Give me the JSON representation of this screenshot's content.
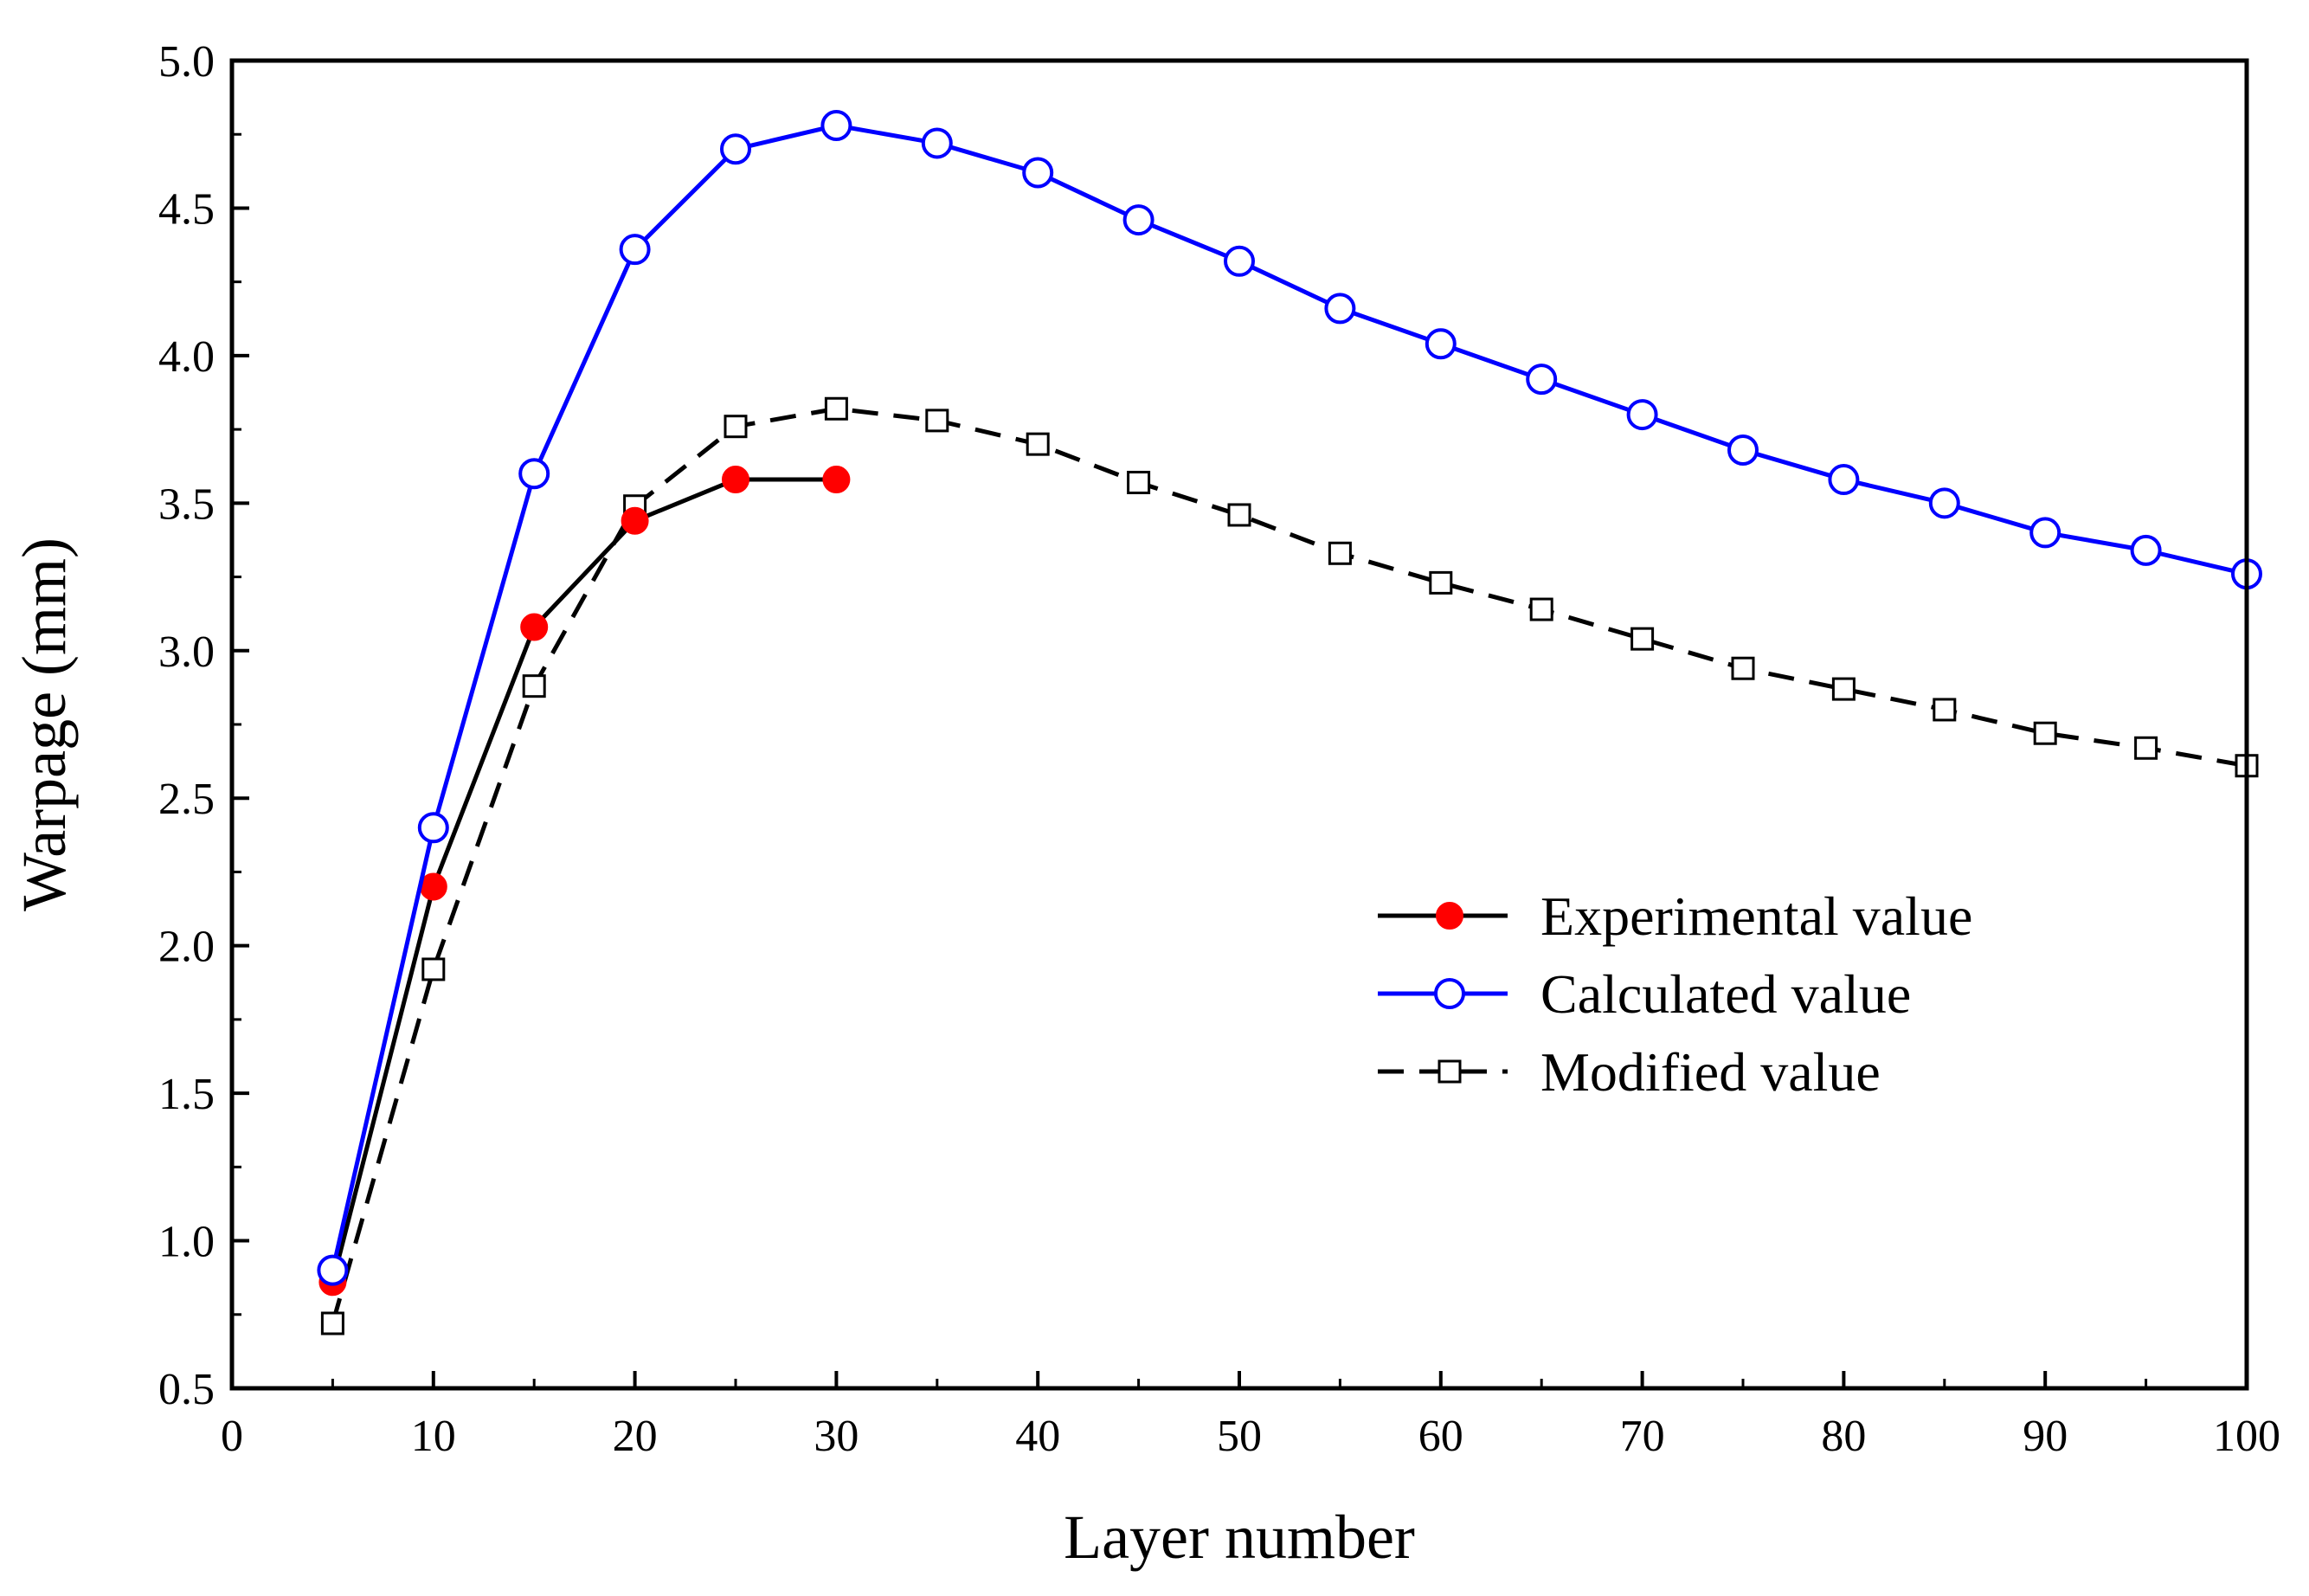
{
  "chart_data": {
    "type": "line",
    "title": "",
    "xlabel": "Layer number",
    "ylabel": "Warpage (mm)",
    "xlim": [
      0,
      100
    ],
    "ylim": [
      0.5,
      5.0
    ],
    "xticks": [
      0,
      10,
      20,
      30,
      40,
      50,
      60,
      70,
      80,
      90,
      100
    ],
    "xtick_labels": [
      "0",
      "10",
      "20",
      "30",
      "40",
      "50",
      "60",
      "70",
      "80",
      "90",
      "100"
    ],
    "yticks": [
      0.5,
      1.0,
      1.5,
      2.0,
      2.5,
      3.0,
      3.5,
      4.0,
      4.5,
      5.0
    ],
    "ytick_labels": [
      "0.5",
      "1.0",
      "1.5",
      "2.0",
      "2.5",
      "3.0",
      "3.5",
      "4.0",
      "4.5",
      "5.0"
    ],
    "grid": false,
    "legend_position": "center-right",
    "series": [
      {
        "name": "Experimental value",
        "color": "#000000",
        "marker_color": "#ff0000",
        "marker": "filled-circle",
        "line_style": "solid",
        "x": [
          5,
          10,
          15,
          20,
          25,
          30
        ],
        "y": [
          0.86,
          2.2,
          3.08,
          3.44,
          3.58,
          3.58
        ]
      },
      {
        "name": "Calculated value",
        "color": "#0000ff",
        "marker_color": "#0000ff",
        "marker": "open-circle",
        "line_style": "solid",
        "x": [
          5,
          10,
          15,
          20,
          25,
          30,
          35,
          40,
          45,
          50,
          55,
          60,
          65,
          70,
          75,
          80,
          85,
          90,
          95,
          100
        ],
        "y": [
          0.9,
          2.4,
          3.6,
          4.36,
          4.7,
          4.78,
          4.72,
          4.62,
          4.46,
          4.32,
          4.16,
          4.04,
          3.92,
          3.8,
          3.68,
          3.58,
          3.5,
          3.4,
          3.34,
          3.26
        ]
      },
      {
        "name": "Modified value",
        "color": "#000000",
        "marker_color": "#000000",
        "marker": "open-square",
        "line_style": "dashed",
        "x": [
          5,
          10,
          15,
          20,
          25,
          30,
          35,
          40,
          45,
          50,
          55,
          60,
          65,
          70,
          75,
          80,
          85,
          90,
          95,
          100
        ],
        "y": [
          0.72,
          1.92,
          2.88,
          3.49,
          3.76,
          3.82,
          3.78,
          3.7,
          3.57,
          3.46,
          3.33,
          3.23,
          3.14,
          3.04,
          2.94,
          2.87,
          2.8,
          2.72,
          2.67,
          2.61
        ]
      }
    ]
  }
}
